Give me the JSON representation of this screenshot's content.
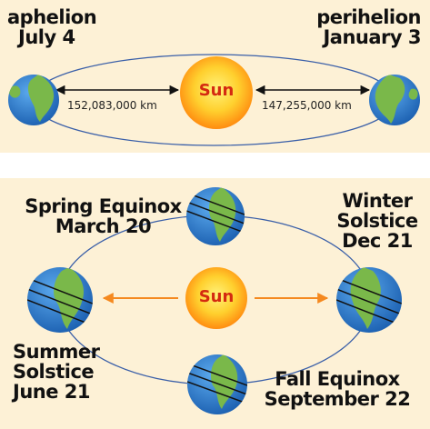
{
  "top_panel": {
    "aphelion": {
      "name": "aphelion",
      "date": "July 4"
    },
    "perihelion": {
      "name": "perihelion",
      "date": "January 3"
    },
    "sun_label": "Sun",
    "aphelion_distance": "152,083,000 km",
    "perihelion_distance": "147,255,000 km"
  },
  "bottom_panel": {
    "sun_label": "Sun",
    "spring_equinox": {
      "line1": "Spring Equinox",
      "line2": "March 20"
    },
    "winter_solstice": {
      "line1": "Winter",
      "line2": "Solstice",
      "line3": "Dec 21"
    },
    "summer_solstice": {
      "line1": "Summer",
      "line2": "Solstice",
      "line3": "June 21"
    },
    "fall_equinox": {
      "line1": "Fall Equinox",
      "line2": "September 22"
    }
  },
  "colors": {
    "panel_background": "#fdf1d6",
    "orbit_line": "#3a5fa8",
    "sun_core": "#ffe14a",
    "sun_edge": "#ff9a12",
    "sun_label": "#d42a10",
    "ocean": "#2f7fd0",
    "land": "#7ab84a",
    "arrow_orange": "#f5891f",
    "arrow_black": "#111111"
  },
  "icons": {
    "sun": "sun-icon",
    "earth": "earth-icon"
  }
}
